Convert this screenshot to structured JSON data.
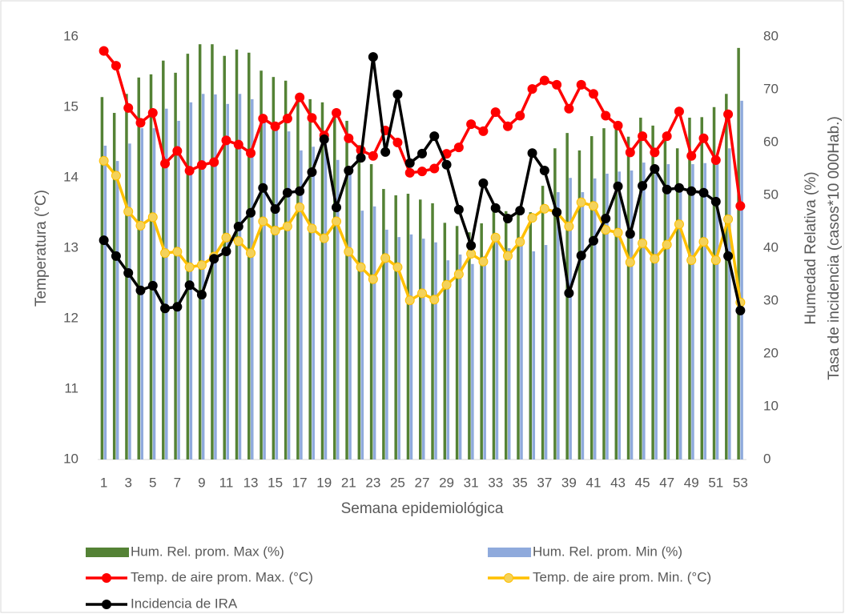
{
  "chart_data": {
    "type": "bar",
    "x_label": "Semana epidemiológica",
    "y_label": "Temperatura (°C)",
    "y2_label": [
      "Humedad Relativa (%)",
      "Tasa de incidencia (casos*10 000Hab.)"
    ],
    "categories": [
      "1",
      null,
      "3",
      null,
      "5",
      null,
      "7",
      null,
      "9",
      null,
      "11",
      null,
      "13",
      null,
      "15",
      null,
      "17",
      null,
      "19",
      null,
      "21",
      null,
      "23",
      null,
      "25",
      null,
      "27",
      null,
      "29",
      null,
      "31",
      null,
      "33",
      null,
      "35",
      null,
      "37",
      null,
      "39",
      null,
      "41",
      null,
      "43",
      null,
      "45",
      null,
      "47",
      null,
      "49",
      null,
      "51",
      null,
      "53"
    ],
    "ylim": [
      10,
      16
    ],
    "yticks": [
      10,
      11,
      12,
      13,
      14,
      15,
      16
    ],
    "y2lim": [
      0,
      80
    ],
    "y2ticks": [
      0,
      10,
      20,
      30,
      40,
      50,
      60,
      70,
      80
    ],
    "grid": false,
    "series": [
      {
        "name": "Hum. Rel. prom. Max (%)",
        "type": "bar",
        "axis": "y2",
        "color": "#548235",
        "values": [
          68.6,
          65.6,
          69.2,
          72.3,
          72.9,
          75.5,
          73.2,
          76.8,
          78.6,
          78.6,
          76.4,
          77.6,
          77.0,
          73.6,
          72.4,
          71.7,
          68.8,
          68.2,
          67.6,
          65.9,
          64.1,
          59.5,
          55.9,
          51.2,
          50.0,
          50.3,
          49.2,
          48.5,
          44.8,
          44.2,
          43.0,
          44.7,
          47.3,
          47.0,
          47.3,
          46.8,
          51.8,
          58.9,
          61.8,
          58.5,
          61.2,
          62.7,
          63.5,
          61.1,
          64.7,
          63.2,
          61.8,
          58.9,
          64.7,
          64.8,
          66.7,
          69.2,
          77.9
        ]
      },
      {
        "name": "Hum. Rel. prom. Min (%)",
        "type": "bar",
        "axis": "y2",
        "color": "#8faadc",
        "values": [
          59.4,
          56.5,
          59.8,
          62.7,
          62.7,
          66.4,
          64.1,
          67.6,
          69.2,
          69.1,
          67.3,
          69.2,
          68.2,
          65.0,
          63.6,
          62.1,
          58.5,
          59.2,
          59.7,
          56.7,
          54.2,
          47.1,
          47.9,
          43.5,
          42.1,
          42.6,
          41.8,
          41.1,
          37.7,
          38.8,
          37.0,
          38.5,
          41.5,
          40.0,
          40.8,
          39.4,
          40.6,
          50.6,
          53.3,
          50.6,
          53.2,
          54.1,
          54.5,
          54.7,
          56.2,
          55.2,
          55.9,
          51.1,
          55.9,
          56.1,
          56.7,
          58.9,
          67.9
        ]
      },
      {
        "name": "Temp. de aire prom. Max. (°C)",
        "type": "line",
        "axis": "y",
        "color": "#ff0000",
        "marker_color": "#ff0000",
        "values": [
          15.8,
          15.59,
          14.99,
          14.78,
          14.92,
          14.2,
          14.38,
          14.1,
          14.18,
          14.22,
          14.53,
          14.47,
          14.35,
          14.84,
          14.73,
          14.84,
          15.14,
          14.85,
          14.6,
          14.92,
          14.56,
          14.39,
          14.31,
          14.67,
          14.5,
          14.07,
          14.09,
          14.13,
          14.34,
          14.43,
          14.76,
          14.66,
          14.93,
          14.73,
          14.88,
          15.26,
          15.38,
          15.32,
          14.98,
          15.32,
          15.19,
          14.88,
          14.74,
          14.36,
          14.59,
          14.36,
          14.59,
          14.94,
          14.31,
          14.56,
          14.25,
          14.9,
          13.6
        ]
      },
      {
        "name": "Temp. de aire prom. Min. (°C)",
        "type": "line",
        "axis": "y",
        "color": "#ffc000",
        "marker_color": "#f4d25a",
        "values": [
          14.24,
          14.03,
          13.52,
          13.32,
          13.44,
          12.93,
          12.95,
          12.73,
          12.76,
          12.88,
          13.15,
          13.1,
          12.93,
          13.38,
          13.25,
          13.31,
          13.58,
          13.28,
          13.14,
          13.38,
          12.95,
          12.73,
          12.56,
          12.86,
          12.73,
          12.26,
          12.36,
          12.27,
          12.48,
          12.63,
          12.92,
          12.81,
          13.15,
          12.89,
          13.09,
          13.43,
          13.56,
          13.51,
          13.31,
          13.65,
          13.6,
          13.26,
          13.22,
          12.8,
          13.07,
          12.85,
          13.05,
          13.34,
          12.83,
          13.09,
          12.83,
          13.41,
          12.23
        ]
      },
      {
        "name": "Incidencia de IRA",
        "type": "line",
        "axis": "y2",
        "color": "#000000",
        "marker_color": "#000000",
        "values": [
          41.5,
          38.5,
          35.3,
          32.0,
          32.9,
          28.6,
          28.9,
          33.0,
          31.2,
          38.0,
          39.4,
          44.1,
          46.7,
          51.4,
          47.4,
          50.5,
          50.8,
          54.4,
          60.6,
          47.7,
          54.7,
          57.1,
          76.2,
          58.2,
          69.1,
          56.1,
          57.9,
          61.2,
          55.8,
          47.3,
          40.5,
          52.3,
          47.6,
          45.6,
          47.1,
          58.0,
          54.7,
          46.8,
          31.5,
          38.6,
          41.4,
          45.6,
          51.7,
          42.7,
          51.8,
          55.0,
          51.1,
          51.4,
          50.8,
          50.5,
          48.8,
          38.5,
          28.2
        ]
      }
    ]
  }
}
